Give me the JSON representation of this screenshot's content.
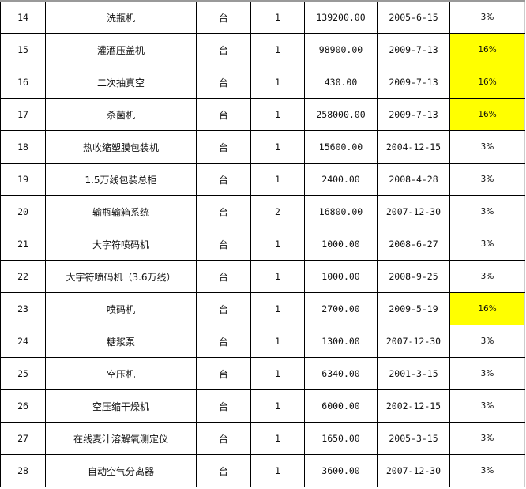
{
  "highlight_color": "#FFFF00",
  "rows": [
    {
      "no": "14",
      "name": "洗瓶机",
      "unit": "台",
      "qty": "1",
      "amount": "139200.00",
      "date": "2005-6-15",
      "rate": "3%",
      "highlight": false
    },
    {
      "no": "15",
      "name": "灌酒压盖机",
      "unit": "台",
      "qty": "1",
      "amount": "98900.00",
      "date": "2009-7-13",
      "rate": "16%",
      "highlight": true
    },
    {
      "no": "16",
      "name": "二次抽真空",
      "unit": "台",
      "qty": "1",
      "amount": "430.00",
      "date": "2009-7-13",
      "rate": "16%",
      "highlight": true
    },
    {
      "no": "17",
      "name": "杀菌机",
      "unit": "台",
      "qty": "1",
      "amount": "258000.00",
      "date": "2009-7-13",
      "rate": "16%",
      "highlight": true
    },
    {
      "no": "18",
      "name": "热收缩塑膜包装机",
      "unit": "台",
      "qty": "1",
      "amount": "15600.00",
      "date": "2004-12-15",
      "rate": "3%",
      "highlight": false
    },
    {
      "no": "19",
      "name": "1.5万线包装总柜",
      "unit": "台",
      "qty": "1",
      "amount": "2400.00",
      "date": "2008-4-28",
      "rate": "3%",
      "highlight": false
    },
    {
      "no": "20",
      "name": "输瓶输箱系统",
      "unit": "台",
      "qty": "2",
      "amount": "16800.00",
      "date": "2007-12-30",
      "rate": "3%",
      "highlight": false
    },
    {
      "no": "21",
      "name": "大字符喷码机",
      "unit": "台",
      "qty": "1",
      "amount": "1000.00",
      "date": "2008-6-27",
      "rate": "3%",
      "highlight": false
    },
    {
      "no": "22",
      "name": "大字符喷码机（3.6万线）",
      "unit": "台",
      "qty": "1",
      "amount": "1000.00",
      "date": "2008-9-25",
      "rate": "3%",
      "highlight": false
    },
    {
      "no": "23",
      "name": "喷码机",
      "unit": "台",
      "qty": "1",
      "amount": "2700.00",
      "date": "2009-5-19",
      "rate": "16%",
      "highlight": true
    },
    {
      "no": "24",
      "name": "糖浆泵",
      "unit": "台",
      "qty": "1",
      "amount": "1300.00",
      "date": "2007-12-30",
      "rate": "3%",
      "highlight": false
    },
    {
      "no": "25",
      "name": "空压机",
      "unit": "台",
      "qty": "1",
      "amount": "6340.00",
      "date": "2001-3-15",
      "rate": "3%",
      "highlight": false
    },
    {
      "no": "26",
      "name": "空压缩干燥机",
      "unit": "台",
      "qty": "1",
      "amount": "6000.00",
      "date": "2002-12-15",
      "rate": "3%",
      "highlight": false
    },
    {
      "no": "27",
      "name": "在线麦汁溶解氧测定仪",
      "unit": "台",
      "qty": "1",
      "amount": "1650.00",
      "date": "2005-3-15",
      "rate": "3%",
      "highlight": false
    },
    {
      "no": "28",
      "name": "自动空气分离器",
      "unit": "台",
      "qty": "1",
      "amount": "3600.00",
      "date": "2007-12-30",
      "rate": "3%",
      "highlight": false
    }
  ]
}
